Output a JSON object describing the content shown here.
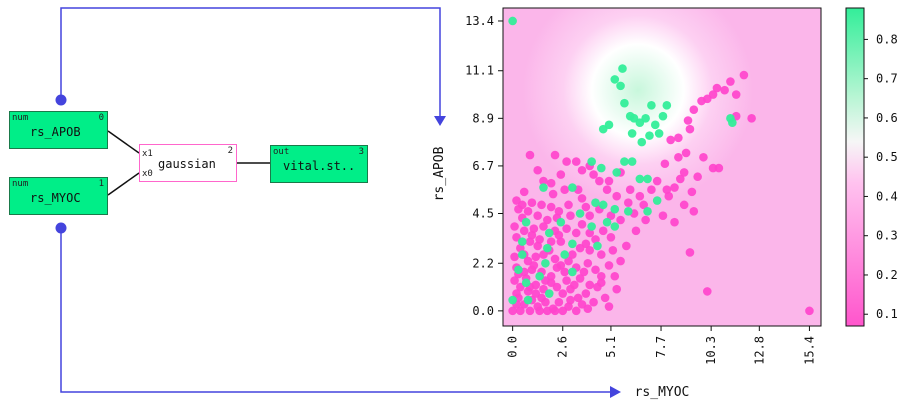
{
  "graph": {
    "nodes": {
      "input_a": {
        "tag": "num",
        "index": "0",
        "title": "rs_APOB"
      },
      "input_b": {
        "tag": "num",
        "index": "1",
        "title": "rs_MYOC"
      },
      "op": {
        "x1": "x1",
        "x0": "x0",
        "index": "2",
        "title": "gaussian"
      },
      "output": {
        "tag": "out",
        "index": "3",
        "title": "vital.st.."
      }
    },
    "colors": {
      "wire": "#4444dd",
      "edge": "#111111"
    }
  },
  "chart_data": {
    "type": "scatter",
    "xlabel": "rs_MYOC",
    "ylabel": "rs_APOB",
    "xlim": [
      -0.5,
      16.0
    ],
    "ylim": [
      -0.7,
      14.0
    ],
    "xticks": [
      "0.0",
      "2.6",
      "5.1",
      "7.7",
      "10.3",
      "12.8",
      "15.4"
    ],
    "yticks": [
      "0.0",
      "2.2",
      "4.5",
      "6.7",
      "8.9",
      "11.1",
      "13.4"
    ],
    "colorbar": {
      "ticks": [
        "0.1",
        "0.2",
        "0.3",
        "0.4",
        "0.5",
        "0.6",
        "0.7",
        "0.8"
      ],
      "range": [
        0.07,
        0.88
      ],
      "low_color": "#ff44cc",
      "high_color": "#33ee99"
    },
    "field": {
      "peak_x": 6.5,
      "peak_y": 10.2,
      "sigma": 2.3
    },
    "grid": false,
    "points_high": [
      [
        0.0,
        13.4
      ],
      [
        5.7,
        11.2
      ],
      [
        4.7,
        8.4
      ],
      [
        5.0,
        8.6
      ],
      [
        5.3,
        10.7
      ],
      [
        5.6,
        10.4
      ],
      [
        5.8,
        9.6
      ],
      [
        6.1,
        9.0
      ],
      [
        6.3,
        8.9
      ],
      [
        6.6,
        8.7
      ],
      [
        6.9,
        8.9
      ],
      [
        7.2,
        9.5
      ],
      [
        7.4,
        8.6
      ],
      [
        7.6,
        8.2
      ],
      [
        7.8,
        9.0
      ],
      [
        8.0,
        9.5
      ],
      [
        6.2,
        8.2
      ],
      [
        6.7,
        7.8
      ],
      [
        7.1,
        8.1
      ],
      [
        5.8,
        6.9
      ],
      [
        6.2,
        6.9
      ],
      [
        4.1,
        6.9
      ],
      [
        4.6,
        6.6
      ],
      [
        6.6,
        6.1
      ],
      [
        3.1,
        5.7
      ],
      [
        4.3,
        5.0
      ],
      [
        4.7,
        4.9
      ],
      [
        5.3,
        4.7
      ],
      [
        6.0,
        4.6
      ],
      [
        7.0,
        4.6
      ],
      [
        7.5,
        5.1
      ],
      [
        1.6,
        5.7
      ],
      [
        0.7,
        4.1
      ],
      [
        2.5,
        4.1
      ],
      [
        3.5,
        4.5
      ],
      [
        4.1,
        3.9
      ],
      [
        4.9,
        4.1
      ],
      [
        5.3,
        3.9
      ],
      [
        1.9,
        3.6
      ],
      [
        0.5,
        3.2
      ],
      [
        3.1,
        3.1
      ],
      [
        4.4,
        3.0
      ],
      [
        0.5,
        2.6
      ],
      [
        1.8,
        2.9
      ],
      [
        2.7,
        2.6
      ],
      [
        0.3,
        1.9
      ],
      [
        1.7,
        2.2
      ],
      [
        0.7,
        1.3
      ],
      [
        1.4,
        1.6
      ],
      [
        3.1,
        1.8
      ],
      [
        1.9,
        0.8
      ],
      [
        0.8,
        0.5
      ],
      [
        0.0,
        0.5
      ],
      [
        11.3,
        8.9
      ],
      [
        11.4,
        8.7
      ],
      [
        5.4,
        6.4
      ],
      [
        7.0,
        6.1
      ]
    ],
    "points_low": [
      [
        12.0,
        10.9
      ],
      [
        11.3,
        10.6
      ],
      [
        11.6,
        10.0
      ],
      [
        11.0,
        10.2
      ],
      [
        10.6,
        10.3
      ],
      [
        10.4,
        10.0
      ],
      [
        10.1,
        9.8
      ],
      [
        9.8,
        9.7
      ],
      [
        9.4,
        9.3
      ],
      [
        9.1,
        8.8
      ],
      [
        11.6,
        9.0
      ],
      [
        12.4,
        8.9
      ],
      [
        9.2,
        8.4
      ],
      [
        8.6,
        8.0
      ],
      [
        8.2,
        7.9
      ],
      [
        9.9,
        7.1
      ],
      [
        10.4,
        6.6
      ],
      [
        10.7,
        6.6
      ],
      [
        9.6,
        6.2
      ],
      [
        8.9,
        6.4
      ],
      [
        8.7,
        6.1
      ],
      [
        8.4,
        5.7
      ],
      [
        9.3,
        5.5
      ],
      [
        8.1,
        5.3
      ],
      [
        8.9,
        4.9
      ],
      [
        9.4,
        4.6
      ],
      [
        7.8,
        4.4
      ],
      [
        8.4,
        4.1
      ],
      [
        9.2,
        2.7
      ],
      [
        10.1,
        0.9
      ],
      [
        15.4,
        0.0
      ],
      [
        0.9,
        7.2
      ],
      [
        2.2,
        7.2
      ],
      [
        2.8,
        6.9
      ],
      [
        3.3,
        6.9
      ],
      [
        3.6,
        6.5
      ],
      [
        4.0,
        6.7
      ],
      [
        4.2,
        6.3
      ],
      [
        4.5,
        6.0
      ],
      [
        5.0,
        6.0
      ],
      [
        5.6,
        6.4
      ],
      [
        6.1,
        5.6
      ],
      [
        5.4,
        5.3
      ],
      [
        6.0,
        5.0
      ],
      [
        6.3,
        4.5
      ],
      [
        6.9,
        4.2
      ],
      [
        7.2,
        5.6
      ],
      [
        2.5,
        6.3
      ],
      [
        1.3,
        6.5
      ],
      [
        1.6,
        6.0
      ],
      [
        2.0,
        5.9
      ],
      [
        2.7,
        5.6
      ],
      [
        3.4,
        5.6
      ],
      [
        0.2,
        5.1
      ],
      [
        0.6,
        5.5
      ],
      [
        1.0,
        5.0
      ],
      [
        1.5,
        4.9
      ],
      [
        2.0,
        4.8
      ],
      [
        2.4,
        4.6
      ],
      [
        2.9,
        4.9
      ],
      [
        3.8,
        4.8
      ],
      [
        4.0,
        4.4
      ],
      [
        4.5,
        4.7
      ],
      [
        5.1,
        4.4
      ],
      [
        5.6,
        4.2
      ],
      [
        0.3,
        4.7
      ],
      [
        0.8,
        4.6
      ],
      [
        1.3,
        4.4
      ],
      [
        1.8,
        4.2
      ],
      [
        2.3,
        4.3
      ],
      [
        3.0,
        4.4
      ],
      [
        3.6,
        4.0
      ],
      [
        4.0,
        3.6
      ],
      [
        4.7,
        3.7
      ],
      [
        5.1,
        3.4
      ],
      [
        4.3,
        3.3
      ],
      [
        3.8,
        3.1
      ],
      [
        3.3,
        3.6
      ],
      [
        2.8,
        3.8
      ],
      [
        2.2,
        3.7
      ],
      [
        1.6,
        3.9
      ],
      [
        1.1,
        3.8
      ],
      [
        0.6,
        3.7
      ],
      [
        0.1,
        3.9
      ],
      [
        0.2,
        3.4
      ],
      [
        0.9,
        3.2
      ],
      [
        1.3,
        3.0
      ],
      [
        2.0,
        3.2
      ],
      [
        2.5,
        3.2
      ],
      [
        3.5,
        2.9
      ],
      [
        4.0,
        2.8
      ],
      [
        4.6,
        2.6
      ],
      [
        5.2,
        2.8
      ],
      [
        5.6,
        2.3
      ],
      [
        5.0,
        2.1
      ],
      [
        0.4,
        2.9
      ],
      [
        0.1,
        2.5
      ],
      [
        0.8,
        2.3
      ],
      [
        1.2,
        2.5
      ],
      [
        1.6,
        2.6
      ],
      [
        2.2,
        2.4
      ],
      [
        2.5,
        2.1
      ],
      [
        2.9,
        2.3
      ],
      [
        3.3,
        2.0
      ],
      [
        3.9,
        2.2
      ],
      [
        4.3,
        1.9
      ],
      [
        4.6,
        1.6
      ],
      [
        5.3,
        1.6
      ],
      [
        0.2,
        2.0
      ],
      [
        0.6,
        1.8
      ],
      [
        1.0,
        1.9
      ],
      [
        1.5,
        1.8
      ],
      [
        2.0,
        1.6
      ],
      [
        2.8,
        1.4
      ],
      [
        3.5,
        1.5
      ],
      [
        4.0,
        1.2
      ],
      [
        4.4,
        1.1
      ],
      [
        5.4,
        1.0
      ],
      [
        0.1,
        1.4
      ],
      [
        0.4,
        1.1
      ],
      [
        0.8,
        0.9
      ],
      [
        1.2,
        1.2
      ],
      [
        1.6,
        1.0
      ],
      [
        2.3,
        1.1
      ],
      [
        2.6,
        0.8
      ],
      [
        3.0,
        1.0
      ],
      [
        3.4,
        0.6
      ],
      [
        3.8,
        0.8
      ],
      [
        4.2,
        0.4
      ],
      [
        4.8,
        0.6
      ],
      [
        5.0,
        0.2
      ],
      [
        0.2,
        0.8
      ],
      [
        0.6,
        0.3
      ],
      [
        1.0,
        0.5
      ],
      [
        1.3,
        0.2
      ],
      [
        1.7,
        0.4
      ],
      [
        2.1,
        0.1
      ],
      [
        2.4,
        0.4
      ],
      [
        2.9,
        0.2
      ],
      [
        3.3,
        0.0
      ],
      [
        3.9,
        0.1
      ],
      [
        0.0,
        0.0
      ],
      [
        0.4,
        0.0
      ],
      [
        0.9,
        0.0
      ],
      [
        1.4,
        0.0
      ],
      [
        1.8,
        0.0
      ],
      [
        2.2,
        0.0
      ],
      [
        2.6,
        0.0
      ],
      [
        3.0,
        0.5
      ],
      [
        3.6,
        0.3
      ],
      [
        0.3,
        0.6
      ],
      [
        0.7,
        1.5
      ],
      [
        1.1,
        2.1
      ],
      [
        1.9,
        2.8
      ],
      [
        2.4,
        3.5
      ],
      [
        0.5,
        4.3
      ],
      [
        1.4,
        3.3
      ],
      [
        3.1,
        2.6
      ],
      [
        0.9,
        1.1
      ],
      [
        1.5,
        0.6
      ],
      [
        2.0,
        1.3
      ],
      [
        0.2,
        0.3
      ],
      [
        2.7,
        1.8
      ],
      [
        3.2,
        1.2
      ],
      [
        0.6,
        2.6
      ],
      [
        1.7,
        1.4
      ],
      [
        1.0,
        3.5
      ],
      [
        4.6,
        1.3
      ],
      [
        2.3,
        2.0
      ],
      [
        3.7,
        1.8
      ],
      [
        0.3,
        1.7
      ],
      [
        1.2,
        0.8
      ],
      [
        5.9,
        3.0
      ],
      [
        6.4,
        3.7
      ],
      [
        6.8,
        4.9
      ],
      [
        7.5,
        6.0
      ],
      [
        8.0,
        5.6
      ],
      [
        4.9,
        5.6
      ],
      [
        3.6,
        5.2
      ],
      [
        2.1,
        5.4
      ],
      [
        0.5,
        4.9
      ],
      [
        6.6,
        5.3
      ],
      [
        7.9,
        6.8
      ],
      [
        8.6,
        7.1
      ],
      [
        9.0,
        7.3
      ]
    ]
  }
}
